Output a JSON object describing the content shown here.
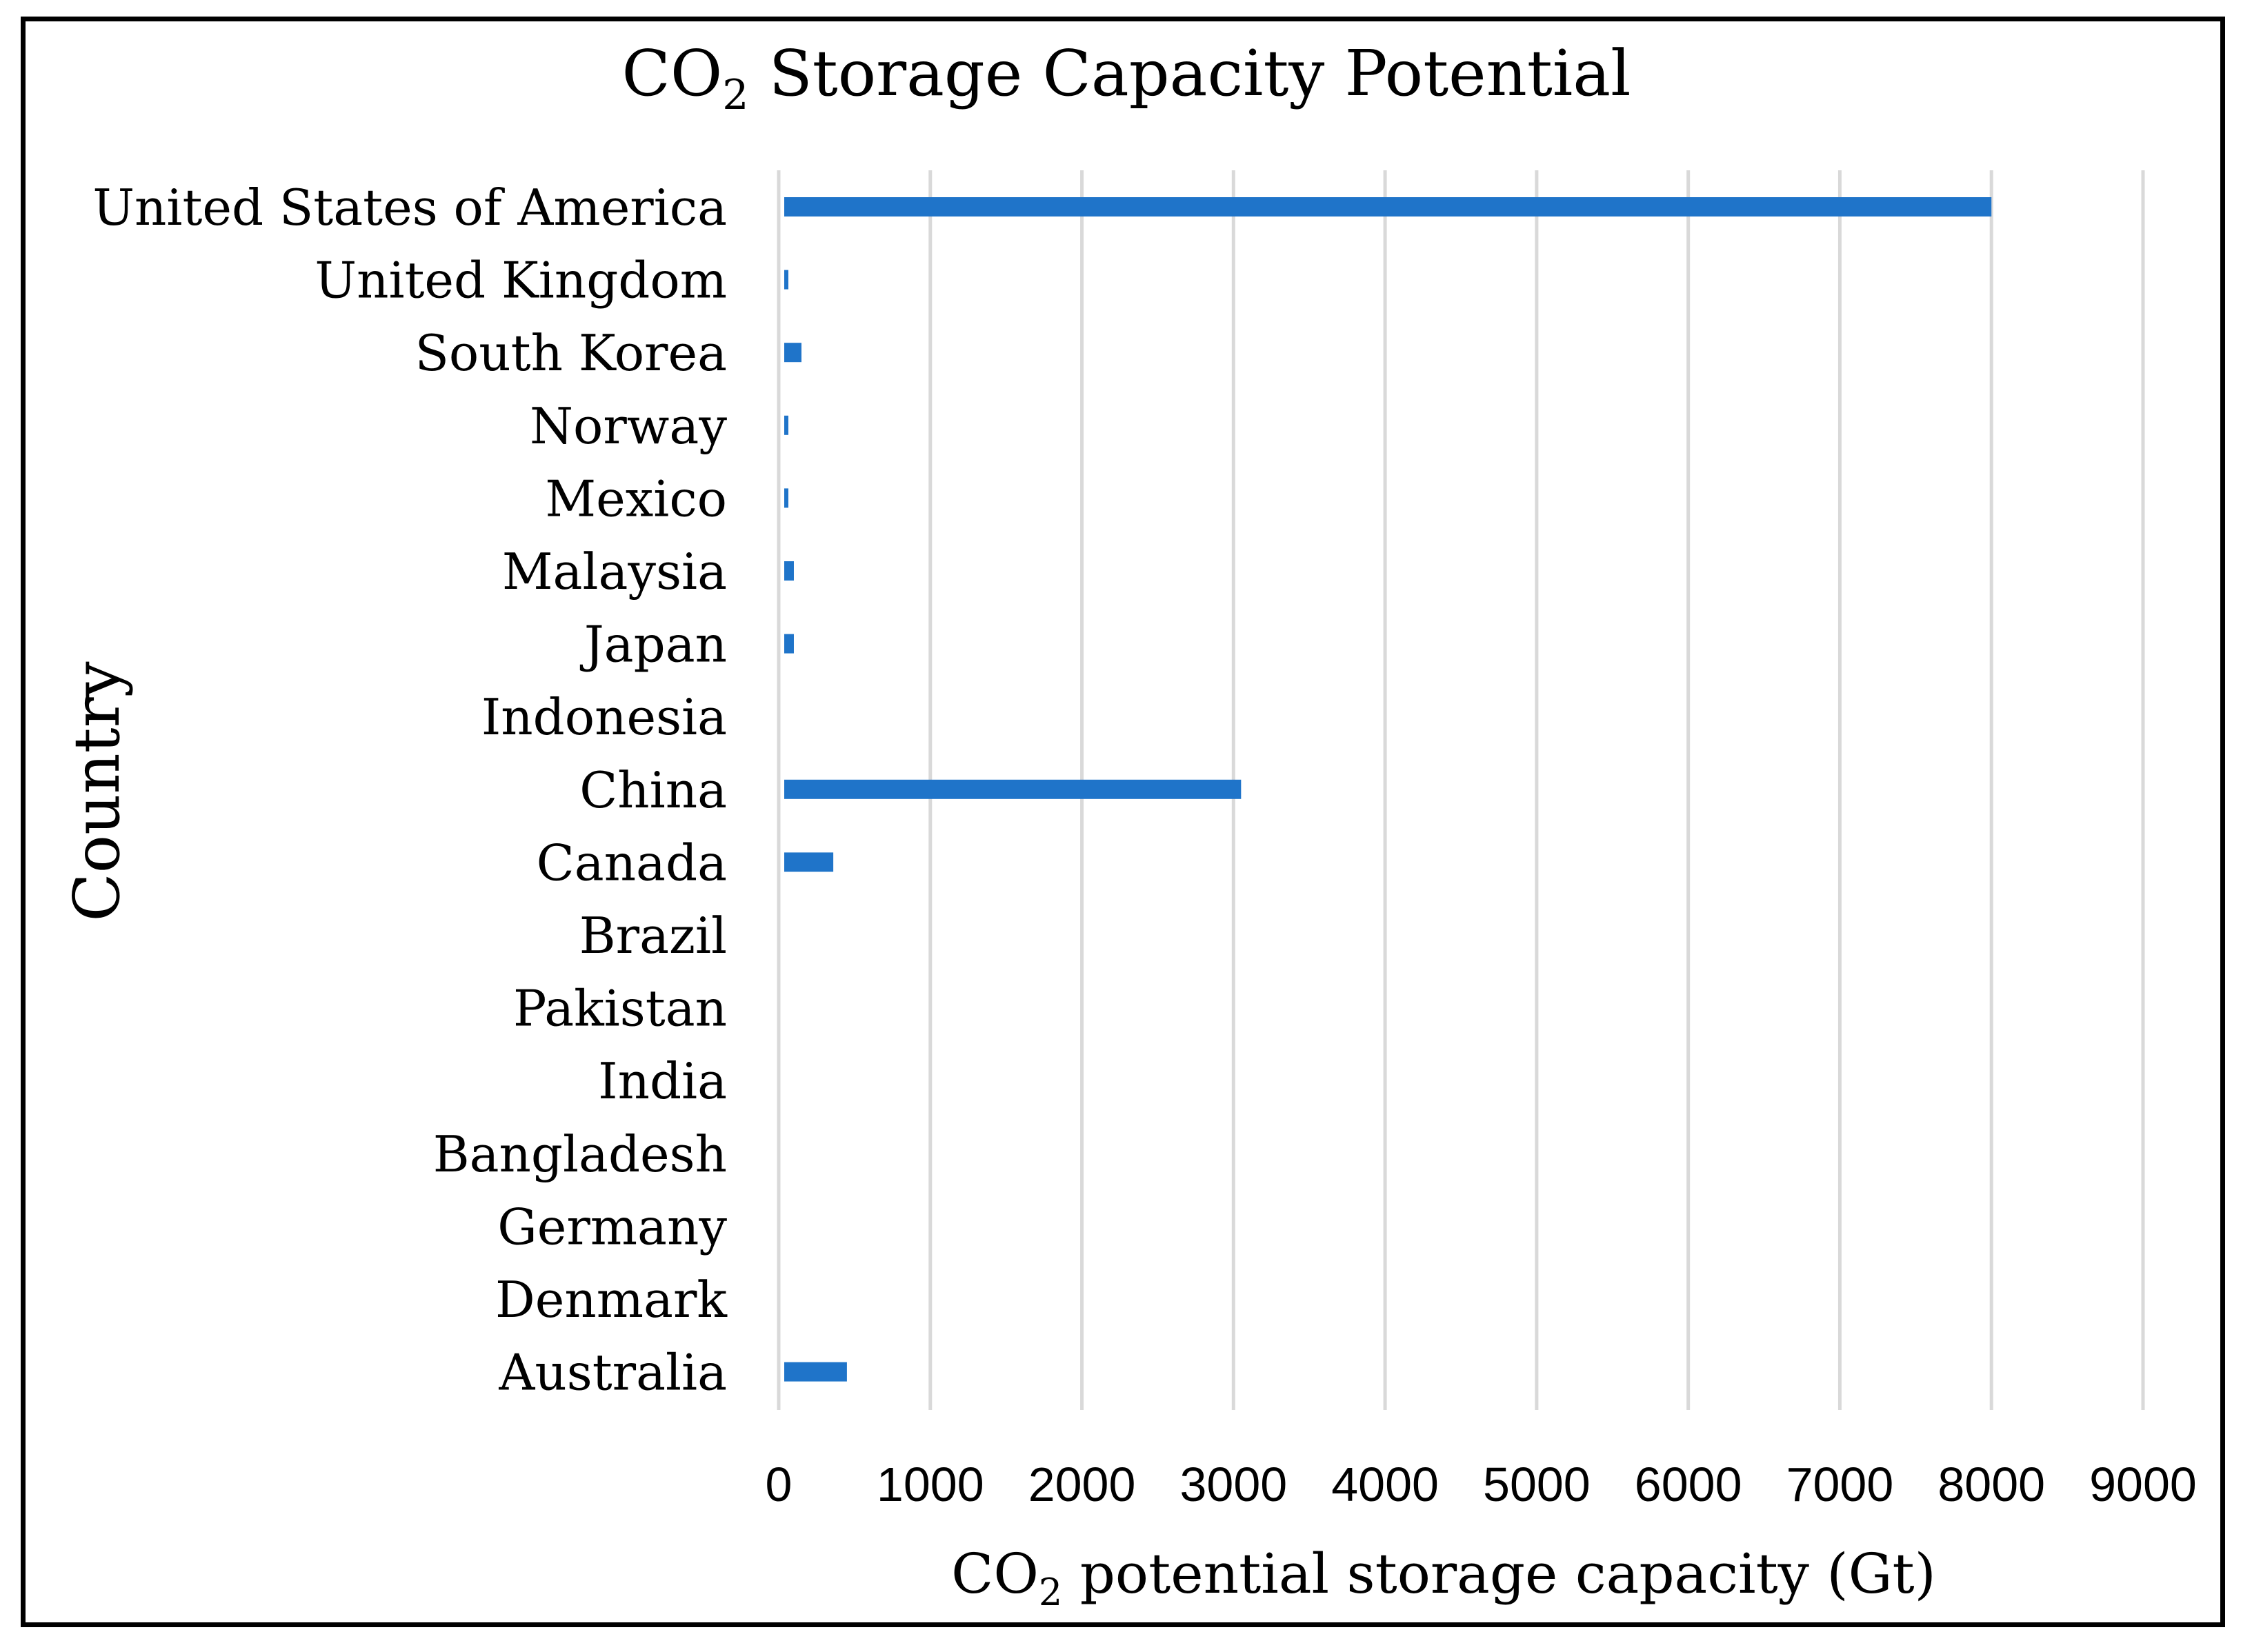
{
  "chart_data": {
    "type": "bar",
    "orientation": "horizontal",
    "title": {
      "main": "CO",
      "subscript": "2",
      "rest": " Storage Capacity Potential"
    },
    "xlabel": {
      "main": "CO",
      "subscript": "2",
      "rest": " potential storage capacity (Gt)"
    },
    "ylabel": "Country",
    "xlim": [
      0,
      9000
    ],
    "xticks": [
      0,
      1000,
      2000,
      3000,
      4000,
      5000,
      6000,
      7000,
      8000,
      9000
    ],
    "grid": true,
    "bar_color": "#1F74C9",
    "categories": [
      "United States of America",
      "United Kingdom",
      "South Korea",
      "Norway",
      "Mexico",
      "Malaysia",
      "Japan",
      "Indonesia",
      "China",
      "Canada",
      "Brazil",
      "Pakistan",
      "India",
      "Bangladesh",
      "Germany",
      "Denmark",
      "Australia"
    ],
    "values": [
      8000,
      20,
      150,
      40,
      50,
      100,
      100,
      0,
      3050,
      360,
      0,
      0,
      0,
      0,
      0,
      0,
      450
    ]
  }
}
